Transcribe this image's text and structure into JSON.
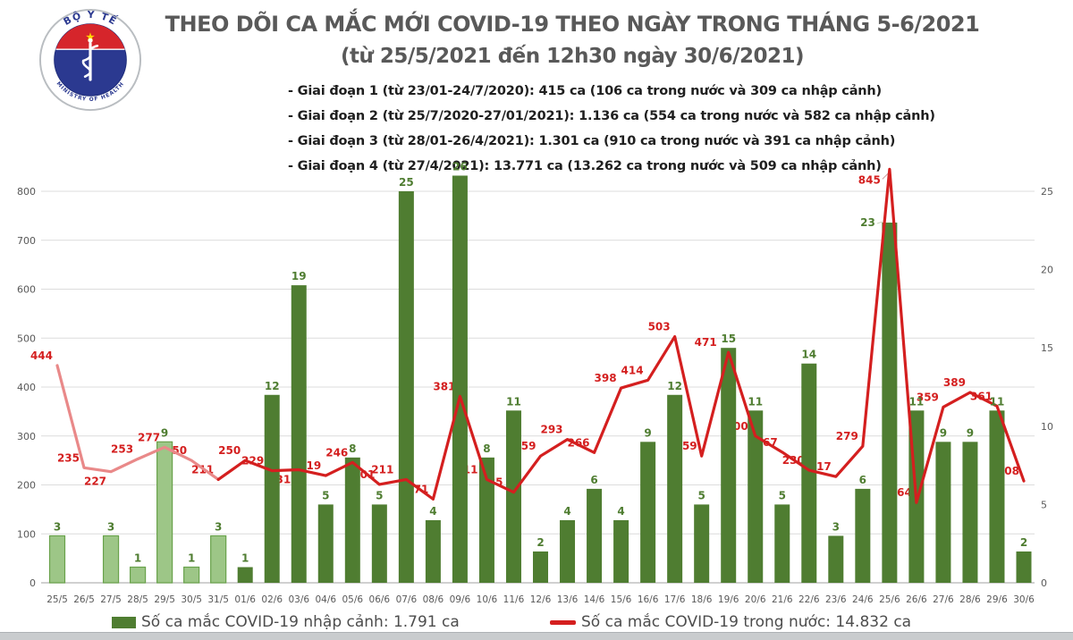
{
  "header": {
    "title": "THEO DÕI CA MẮC MỚI COVID-19 THEO NGÀY TRONG THÁNG 5-6/2021",
    "subtitle": "(từ 25/5/2021 đến 12h30 ngày 30/6/2021)",
    "phases": [
      "- Giai đoạn 1 (từ 23/01-24/7/2020): 415 ca (106 ca trong nước và 309 ca nhập cảnh)",
      "- Giai đoạn 2 (từ 25/7/2020-27/01/2021): 1.136 ca (554 ca trong nước và 582 ca nhập cảnh)",
      "- Giai đoạn 3 (từ 28/01-26/4/2021): 1.301 ca (910 ca trong nước và 391 ca nhập cảnh)",
      "- Giai đoạn 4 (từ 27/4/2021): 13.771 ca (13.262 ca trong nước và 509 ca nhập cảnh)"
    ]
  },
  "logo": {
    "top_text": "BỘ Y TẾ",
    "bottom_text": "MINISTRY OF HEALTH",
    "star": "★",
    "navy": "#2b3990",
    "red": "#d6252b",
    "yellow": "#ffd500"
  },
  "legend": {
    "items": [
      {
        "label": "Số ca mắc COVID-19 nhập cảnh: 1.791 ca",
        "marker": "bar-swatch",
        "color": "#4f7d31"
      },
      {
        "label": "Số ca mắc COVID-19 trong nước: 14.832 ca",
        "marker": "line-dash",
        "color": "#d41f1f"
      }
    ]
  },
  "chart_data": {
    "type": "bar+line",
    "title": "THEO DÕI CA MẮC MỚI COVID-19 THEO NGÀY TRONG THÁNG 5-6/2021",
    "categories": [
      "25/5",
      "26/5",
      "27/5",
      "28/5",
      "29/5",
      "30/5",
      "31/5",
      "01/6",
      "02/6",
      "03/6",
      "04/6",
      "05/6",
      "06/6",
      "07/6",
      "08/6",
      "09/6",
      "10/6",
      "11/6",
      "12/6",
      "13/6",
      "14/6",
      "15/6",
      "16/6",
      "17/6",
      "18/6",
      "19/6",
      "20/6",
      "21/6",
      "22/6",
      "23/6",
      "24/6",
      "25/6",
      "26/6",
      "27/6",
      "28/6",
      "29/6",
      "30/6"
    ],
    "series": [
      {
        "name": "Số ca mắc COVID-19 nhập cảnh",
        "total": "1.791 ca",
        "type": "bar",
        "axis": "right",
        "color": "#4f7d31",
        "color_may_fill": "#9dc687",
        "color_may_stroke": "#69a24b",
        "label_color": "#4f7d31",
        "values": [
          3,
          null,
          3,
          1,
          9,
          1,
          3,
          1,
          12,
          19,
          5,
          8,
          5,
          25,
          4,
          26,
          8,
          11,
          2,
          4,
          6,
          4,
          9,
          12,
          5,
          15,
          11,
          5,
          14,
          3,
          6,
          23,
          11,
          9,
          9,
          11,
          2
        ]
      },
      {
        "name": "Số ca mắc COVID-19 trong nước",
        "total": "14.832 ca",
        "type": "line",
        "axis": "left",
        "color": "#d41f1f",
        "color_may": "#e98989",
        "label_color": "#d41f1f",
        "values": [
          444,
          235,
          227,
          253,
          277,
          250,
          211,
          250,
          229,
          231,
          219,
          246,
          201,
          211,
          171,
          381,
          211,
          185,
          259,
          293,
          266,
          398,
          414,
          503,
          259,
          471,
          300,
          267,
          230,
          217,
          279,
          845,
          164,
          359,
          389,
          361,
          208
        ]
      }
    ],
    "may_june_split_index": 6,
    "left_axis": {
      "ticks": [
        0,
        100,
        200,
        300,
        400,
        500,
        600,
        700,
        800
      ],
      "max": 800
    },
    "right_axis": {
      "ticks": [
        0,
        5,
        10,
        15,
        20,
        25
      ],
      "max": 25
    },
    "grid": "horizontal",
    "gridline_color": "#dcdcdc",
    "baseline_color": "#b5b5b5",
    "axis_text_color": "#595959",
    "legend_position": "bottom"
  }
}
